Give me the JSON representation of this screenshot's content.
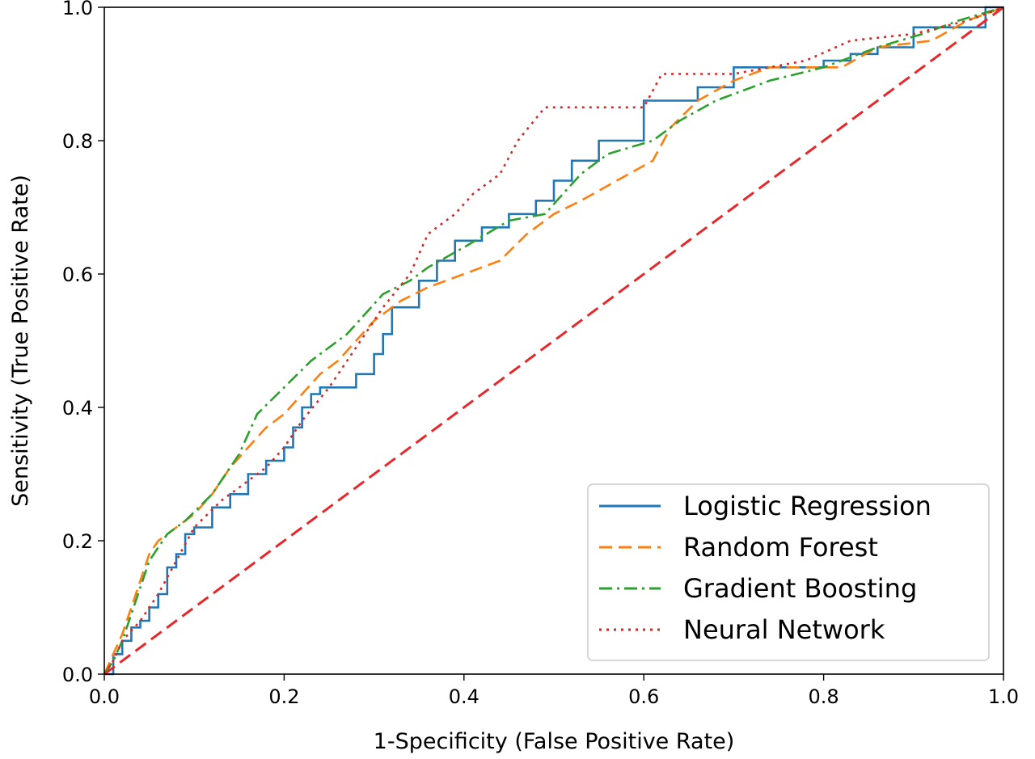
{
  "chart_data": {
    "type": "line",
    "xlabel": "1-Specificity (False Positive Rate)",
    "ylabel": "Sensitivity (True Positive Rate)",
    "xlim": [
      0.0,
      1.0
    ],
    "ylim": [
      0.0,
      1.0
    ],
    "xticks": [
      "0.0",
      "0.2",
      "0.4",
      "0.6",
      "0.8",
      "1.0"
    ],
    "yticks": [
      "0.0",
      "0.2",
      "0.4",
      "0.6",
      "0.8",
      "1.0"
    ],
    "grid": false,
    "legend_position": "lower-right",
    "series": [
      {
        "name": "Logistic Regression",
        "color": "#1f77b4",
        "style": "solid",
        "x": [
          0.0,
          0.01,
          0.01,
          0.02,
          0.02,
          0.03,
          0.03,
          0.04,
          0.04,
          0.05,
          0.05,
          0.06,
          0.06,
          0.07,
          0.07,
          0.08,
          0.08,
          0.09,
          0.09,
          0.1,
          0.1,
          0.12,
          0.12,
          0.14,
          0.14,
          0.16,
          0.16,
          0.18,
          0.18,
          0.2,
          0.2,
          0.21,
          0.21,
          0.22,
          0.22,
          0.23,
          0.23,
          0.24,
          0.24,
          0.25,
          0.25,
          0.28,
          0.28,
          0.3,
          0.3,
          0.31,
          0.31,
          0.32,
          0.32,
          0.35,
          0.35,
          0.37,
          0.37,
          0.39,
          0.39,
          0.42,
          0.42,
          0.45,
          0.45,
          0.48,
          0.48,
          0.5,
          0.5,
          0.52,
          0.52,
          0.55,
          0.55,
          0.58,
          0.58,
          0.6,
          0.6,
          0.61,
          0.61,
          0.66,
          0.66,
          0.7,
          0.7,
          0.74,
          0.74,
          0.8,
          0.8,
          0.83,
          0.83,
          0.86,
          0.86,
          0.9,
          0.9,
          0.96,
          0.96,
          0.98,
          0.98,
          1.0
        ],
        "y": [
          0.0,
          0.0,
          0.03,
          0.03,
          0.05,
          0.05,
          0.07,
          0.07,
          0.08,
          0.08,
          0.1,
          0.1,
          0.12,
          0.12,
          0.16,
          0.16,
          0.18,
          0.18,
          0.21,
          0.21,
          0.22,
          0.22,
          0.25,
          0.25,
          0.27,
          0.27,
          0.3,
          0.3,
          0.32,
          0.32,
          0.34,
          0.34,
          0.37,
          0.37,
          0.4,
          0.4,
          0.42,
          0.42,
          0.43,
          0.43,
          0.43,
          0.43,
          0.45,
          0.45,
          0.48,
          0.48,
          0.51,
          0.51,
          0.55,
          0.55,
          0.59,
          0.59,
          0.62,
          0.62,
          0.65,
          0.65,
          0.67,
          0.67,
          0.69,
          0.69,
          0.71,
          0.71,
          0.74,
          0.74,
          0.77,
          0.77,
          0.8,
          0.8,
          0.8,
          0.8,
          0.86,
          0.86,
          0.86,
          0.86,
          0.88,
          0.88,
          0.91,
          0.91,
          0.91,
          0.91,
          0.92,
          0.92,
          0.93,
          0.93,
          0.94,
          0.94,
          0.97,
          0.97,
          0.97,
          0.97,
          1.0,
          1.0
        ]
      },
      {
        "name": "Random Forest",
        "color": "#ff7f0e",
        "style": "dashed",
        "x": [
          0.0,
          0.01,
          0.01,
          0.02,
          0.02,
          0.03,
          0.03,
          0.04,
          0.04,
          0.05,
          0.05,
          0.06,
          0.06,
          0.08,
          0.08,
          0.1,
          0.1,
          0.12,
          0.12,
          0.14,
          0.14,
          0.16,
          0.16,
          0.18,
          0.18,
          0.2,
          0.2,
          0.22,
          0.22,
          0.24,
          0.24,
          0.26,
          0.26,
          0.28,
          0.28,
          0.3,
          0.3,
          0.33,
          0.33,
          0.36,
          0.36,
          0.4,
          0.4,
          0.44,
          0.44,
          0.47,
          0.47,
          0.5,
          0.5,
          0.53,
          0.53,
          0.57,
          0.57,
          0.61,
          0.61,
          0.63,
          0.63,
          0.66,
          0.66,
          0.7,
          0.7,
          0.74,
          0.74,
          0.82,
          0.82,
          0.86,
          0.86,
          0.92,
          0.92,
          0.96,
          0.96,
          1.0
        ],
        "y": [
          0.0,
          0.03,
          0.03,
          0.06,
          0.06,
          0.1,
          0.1,
          0.14,
          0.14,
          0.18,
          0.18,
          0.2,
          0.2,
          0.22,
          0.22,
          0.24,
          0.24,
          0.27,
          0.27,
          0.31,
          0.31,
          0.34,
          0.34,
          0.37,
          0.37,
          0.39,
          0.39,
          0.42,
          0.42,
          0.45,
          0.45,
          0.47,
          0.47,
          0.5,
          0.5,
          0.53,
          0.53,
          0.56,
          0.56,
          0.58,
          0.58,
          0.6,
          0.6,
          0.62,
          0.62,
          0.66,
          0.66,
          0.69,
          0.69,
          0.71,
          0.71,
          0.74,
          0.74,
          0.77,
          0.77,
          0.82,
          0.82,
          0.86,
          0.86,
          0.89,
          0.89,
          0.91,
          0.91,
          0.91,
          0.91,
          0.94,
          0.94,
          0.95,
          0.95,
          0.98,
          0.98,
          1.0
        ]
      },
      {
        "name": "Gradient Boosting",
        "color": "#2ca02c",
        "style": "dashdot",
        "x": [
          0.0,
          0.01,
          0.01,
          0.02,
          0.02,
          0.03,
          0.03,
          0.04,
          0.04,
          0.05,
          0.05,
          0.07,
          0.07,
          0.09,
          0.09,
          0.12,
          0.12,
          0.15,
          0.15,
          0.17,
          0.17,
          0.2,
          0.2,
          0.23,
          0.23,
          0.27,
          0.27,
          0.31,
          0.31,
          0.34,
          0.34,
          0.36,
          0.36,
          0.4,
          0.4,
          0.45,
          0.45,
          0.49,
          0.49,
          0.51,
          0.51,
          0.53,
          0.53,
          0.56,
          0.56,
          0.61,
          0.61,
          0.64,
          0.64,
          0.68,
          0.68,
          0.74,
          0.74,
          0.8,
          0.8,
          0.86,
          0.86,
          0.91,
          0.91,
          0.95,
          0.95,
          1.0
        ],
        "y": [
          0.0,
          0.02,
          0.02,
          0.05,
          0.05,
          0.09,
          0.09,
          0.13,
          0.13,
          0.17,
          0.17,
          0.21,
          0.21,
          0.23,
          0.23,
          0.27,
          0.27,
          0.33,
          0.33,
          0.39,
          0.39,
          0.43,
          0.43,
          0.47,
          0.47,
          0.51,
          0.51,
          0.57,
          0.57,
          0.59,
          0.59,
          0.61,
          0.61,
          0.64,
          0.64,
          0.68,
          0.68,
          0.69,
          0.69,
          0.72,
          0.72,
          0.75,
          0.75,
          0.78,
          0.78,
          0.8,
          0.8,
          0.83,
          0.83,
          0.86,
          0.86,
          0.89,
          0.89,
          0.91,
          0.91,
          0.94,
          0.94,
          0.96,
          0.96,
          0.98,
          0.98,
          1.0
        ]
      },
      {
        "name": "Neural Network",
        "color": "#d62728",
        "style": "dotted",
        "x": [
          0.0,
          0.01,
          0.01,
          0.02,
          0.02,
          0.04,
          0.04,
          0.06,
          0.06,
          0.08,
          0.08,
          0.1,
          0.1,
          0.13,
          0.13,
          0.16,
          0.16,
          0.18,
          0.18,
          0.2,
          0.2,
          0.22,
          0.22,
          0.25,
          0.25,
          0.28,
          0.28,
          0.31,
          0.31,
          0.34,
          0.34,
          0.36,
          0.36,
          0.39,
          0.39,
          0.41,
          0.41,
          0.44,
          0.44,
          0.46,
          0.46,
          0.49,
          0.49,
          0.6,
          0.6,
          0.62,
          0.62,
          0.7,
          0.7,
          0.78,
          0.78,
          0.83,
          0.83,
          0.9,
          0.9,
          0.96,
          0.96,
          1.0
        ],
        "y": [
          0.0,
          0.02,
          0.02,
          0.05,
          0.05,
          0.08,
          0.08,
          0.12,
          0.12,
          0.17,
          0.17,
          0.22,
          0.22,
          0.26,
          0.26,
          0.29,
          0.29,
          0.31,
          0.31,
          0.34,
          0.34,
          0.38,
          0.38,
          0.43,
          0.43,
          0.49,
          0.49,
          0.55,
          0.55,
          0.6,
          0.6,
          0.66,
          0.66,
          0.69,
          0.69,
          0.72,
          0.72,
          0.75,
          0.75,
          0.8,
          0.8,
          0.85,
          0.85,
          0.85,
          0.85,
          0.9,
          0.9,
          0.9,
          0.9,
          0.92,
          0.92,
          0.95,
          0.95,
          0.96,
          0.96,
          0.98,
          0.98,
          1.0
        ]
      }
    ],
    "reference_line": {
      "color": "#e8272a",
      "style": "dashed",
      "x": [
        0.0,
        1.0
      ],
      "y": [
        0.0,
        1.0
      ]
    }
  }
}
